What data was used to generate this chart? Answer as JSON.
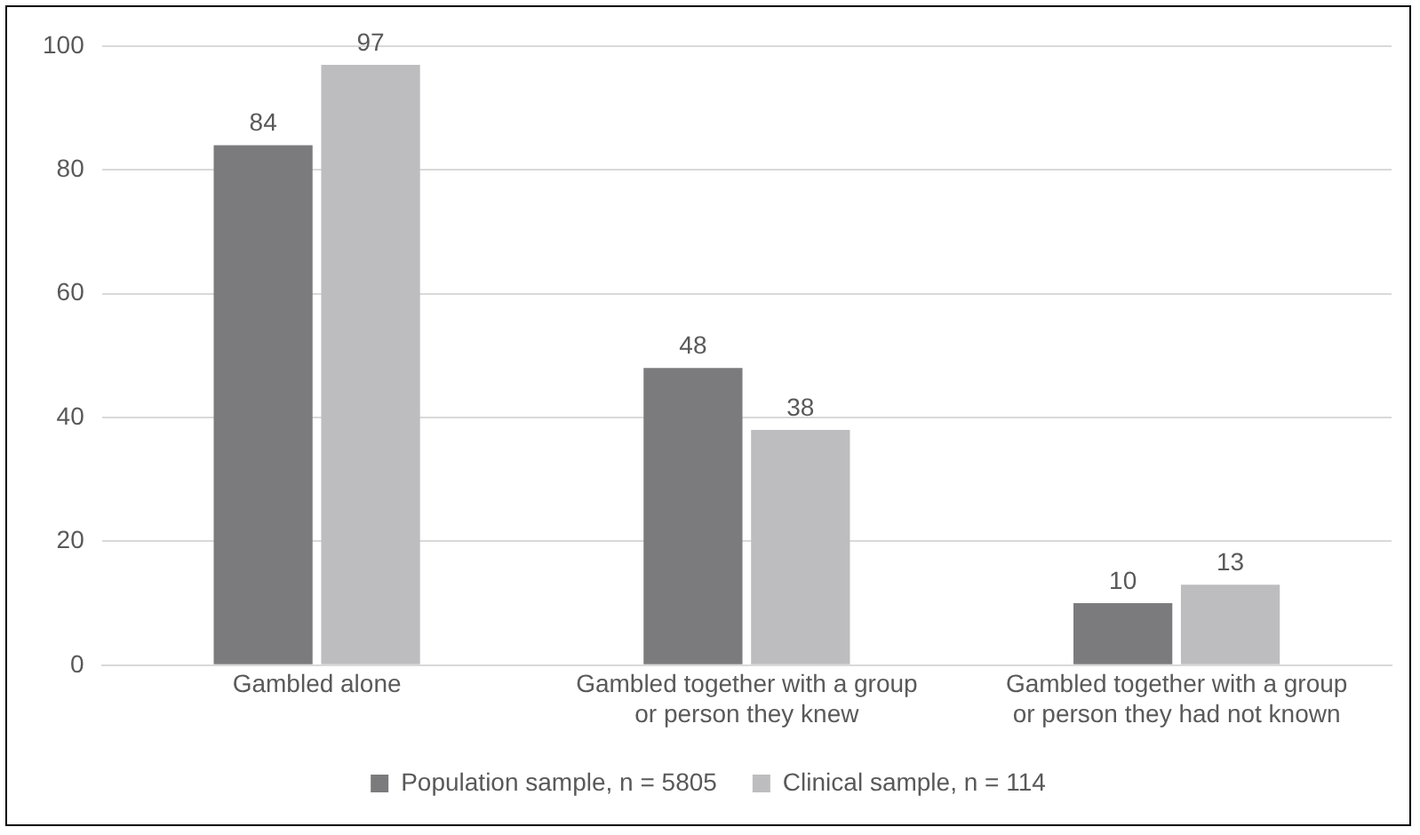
{
  "chart_data": {
    "type": "bar",
    "categories": [
      "Gambled alone",
      "Gambled together with a group or person they knew",
      "Gambled together with a group or person they had not known"
    ],
    "series": [
      {
        "name": "Population sample, n = 5805",
        "color": "#7b7b7d",
        "values": [
          84,
          48,
          10
        ]
      },
      {
        "name": "Clinical sample, n = 114",
        "color": "#bdbdbf",
        "values": [
          97,
          38,
          13
        ]
      }
    ],
    "ylim": [
      0,
      100
    ],
    "yticks": [
      0,
      20,
      40,
      60,
      80,
      100
    ],
    "grid": "y",
    "legend": "bottom",
    "data_labels": true
  }
}
